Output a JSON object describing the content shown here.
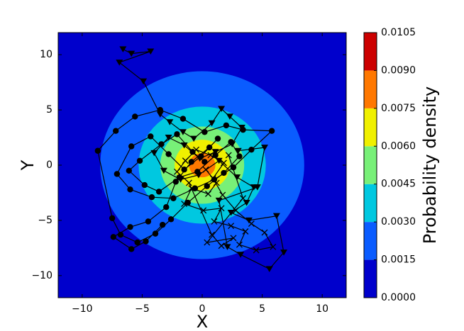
{
  "chart_data": {
    "type": "contour+scatter",
    "xlabel": "X",
    "ylabel": "Y",
    "xlim": [
      -12,
      12
    ],
    "ylim": [
      -12,
      12
    ],
    "xticks": [
      -10,
      -5,
      0,
      5,
      10
    ],
    "yticks": [
      -10,
      -5,
      0,
      5,
      10
    ],
    "xtick_labels": [
      "−10",
      "−5",
      "0",
      "5",
      "10"
    ],
    "ytick_labels": [
      "−10",
      "−5",
      "0",
      "5",
      "10"
    ],
    "colorbar": {
      "label": "Probability density",
      "ticks": [
        "0.0000",
        "0.0015",
        "0.0030",
        "0.0045",
        "0.0060",
        "0.0075",
        "0.0090",
        "0.0105"
      ],
      "levels": [
        0.0,
        0.0015,
        0.003,
        0.0045,
        0.006,
        0.0075,
        0.009,
        0.0105
      ],
      "colors": [
        "#0000cc",
        "#0a5cff",
        "#00c8e0",
        "#78f078",
        "#f0f000",
        "#ff7800",
        "#cc0000"
      ]
    },
    "contour_center": [
      0,
      0
    ],
    "contour_bands": [
      {
        "level": 0.0015,
        "radius": 8.5
      },
      {
        "level": 0.003,
        "radius": 5.3
      },
      {
        "level": 0.0045,
        "radius": 3.5
      },
      {
        "level": 0.006,
        "radius": 2.3
      },
      {
        "level": 0.0075,
        "radius": 1.1
      }
    ],
    "series": [
      {
        "marker": "circle",
        "points": [
          [
            0.2,
            0.3
          ],
          [
            -0.8,
            1.2
          ],
          [
            -2.1,
            2.8
          ],
          [
            -3.4,
            1.9
          ],
          [
            -5.2,
            0.4
          ],
          [
            -6.1,
            -0.5
          ],
          [
            -4.8,
            -1.8
          ],
          [
            -3.6,
            -2.4
          ],
          [
            -1.9,
            -1.1
          ],
          [
            -0.4,
            -0.6
          ],
          [
            1.1,
            0.9
          ],
          [
            2.4,
            2.1
          ],
          [
            3.1,
            0.8
          ],
          [
            1.8,
            -0.7
          ],
          [
            0.4,
            -1.9
          ],
          [
            -1.2,
            -3.4
          ],
          [
            -2.6,
            -4.9
          ],
          [
            -3.9,
            -6.2
          ],
          [
            -5.4,
            -7.0
          ],
          [
            -6.8,
            -6.3
          ],
          [
            -7.5,
            -4.8
          ],
          [
            -8.7,
            1.3
          ],
          [
            -7.2,
            3.1
          ],
          [
            -5.6,
            4.4
          ],
          [
            -3.5,
            5.0
          ],
          [
            -1.6,
            4.2
          ],
          [
            0.2,
            3.0
          ],
          [
            2.0,
            3.6
          ],
          [
            3.4,
            3.2
          ],
          [
            5.8,
            3.1
          ],
          [
            4.1,
            1.4
          ],
          [
            2.6,
            -0.2
          ],
          [
            1.0,
            -1.3
          ],
          [
            -0.6,
            -2.1
          ],
          [
            -2.4,
            -3.0
          ],
          [
            -4.2,
            -2.9
          ],
          [
            -6.0,
            -2.2
          ],
          [
            -7.1,
            -0.8
          ],
          [
            -5.9,
            1.7
          ],
          [
            -4.3,
            2.6
          ],
          [
            -2.8,
            1.0
          ],
          [
            -1.5,
            -0.4
          ],
          [
            -0.1,
            0.8
          ],
          [
            1.3,
            2.4
          ],
          [
            0.6,
            1.6
          ],
          [
            -0.9,
            0.3
          ],
          [
            -2.2,
            -1.5
          ],
          [
            -3.0,
            -3.8
          ],
          [
            -4.5,
            -5.1
          ],
          [
            -6.0,
            -5.6
          ],
          [
            -7.4,
            -6.5
          ],
          [
            -5.9,
            -7.6
          ],
          [
            -4.7,
            -6.9
          ],
          [
            -3.3,
            -5.4
          ]
        ]
      },
      {
        "marker": "triangle_down",
        "points": [
          [
            -6.6,
            10.5
          ],
          [
            -5.9,
            10.1
          ],
          [
            -4.3,
            10.3
          ],
          [
            -6.9,
            9.3
          ],
          [
            -4.9,
            7.6
          ],
          [
            -3.5,
            4.6
          ],
          [
            -2.7,
            3.9
          ],
          [
            -1.6,
            3.0
          ],
          [
            -0.7,
            2.4
          ],
          [
            0.8,
            3.8
          ],
          [
            1.6,
            5.1
          ],
          [
            2.3,
            4.4
          ],
          [
            3.3,
            3.4
          ],
          [
            2.5,
            1.9
          ],
          [
            1.1,
            1.2
          ],
          [
            -0.2,
            0.6
          ],
          [
            -1.5,
            1.8
          ],
          [
            -2.8,
            2.5
          ],
          [
            -4.0,
            1.1
          ],
          [
            -3.2,
            -0.5
          ],
          [
            -1.8,
            -1.3
          ],
          [
            -0.3,
            -0.9
          ],
          [
            1.4,
            0.4
          ],
          [
            2.9,
            -1.1
          ],
          [
            4.3,
            -2.0
          ],
          [
            3.7,
            -3.4
          ],
          [
            2.4,
            -4.3
          ],
          [
            3.9,
            -5.0
          ],
          [
            6.2,
            -4.6
          ],
          [
            6.8,
            -7.9
          ],
          [
            5.6,
            -9.4
          ],
          [
            3.2,
            -8.1
          ],
          [
            2.1,
            -7.4
          ],
          [
            1.4,
            -3.2
          ],
          [
            4.6,
            -2.0
          ],
          [
            5.2,
            1.6
          ],
          [
            3.0,
            1.3
          ]
        ]
      },
      {
        "marker": "x",
        "points": [
          [
            0.3,
            -0.4
          ],
          [
            1.2,
            -1.6
          ],
          [
            0.5,
            -2.6
          ],
          [
            -0.9,
            -2.1
          ],
          [
            -1.5,
            -3.5
          ],
          [
            0.1,
            -4.1
          ],
          [
            1.6,
            -3.9
          ],
          [
            1.0,
            -5.1
          ],
          [
            2.4,
            -5.5
          ],
          [
            3.6,
            -6.0
          ],
          [
            3.1,
            -7.2
          ],
          [
            4.5,
            -7.7
          ],
          [
            5.9,
            -7.4
          ],
          [
            5.2,
            -6.1
          ],
          [
            4.1,
            -5.3
          ],
          [
            2.8,
            -4.1
          ],
          [
            1.7,
            -2.7
          ],
          [
            0.9,
            -1.2
          ],
          [
            1.8,
            0.2
          ],
          [
            0.7,
            0.9
          ],
          [
            -0.5,
            1.4
          ],
          [
            -1.4,
            0.4
          ],
          [
            -2.1,
            -0.6
          ],
          [
            -1.1,
            -1.6
          ],
          [
            0.8,
            -6.3
          ],
          [
            1.6,
            -7.3
          ],
          [
            2.6,
            -6.6
          ],
          [
            0.4,
            -7.0
          ],
          [
            3.4,
            -3.0
          ],
          [
            2.2,
            0.9
          ]
        ]
      }
    ]
  }
}
